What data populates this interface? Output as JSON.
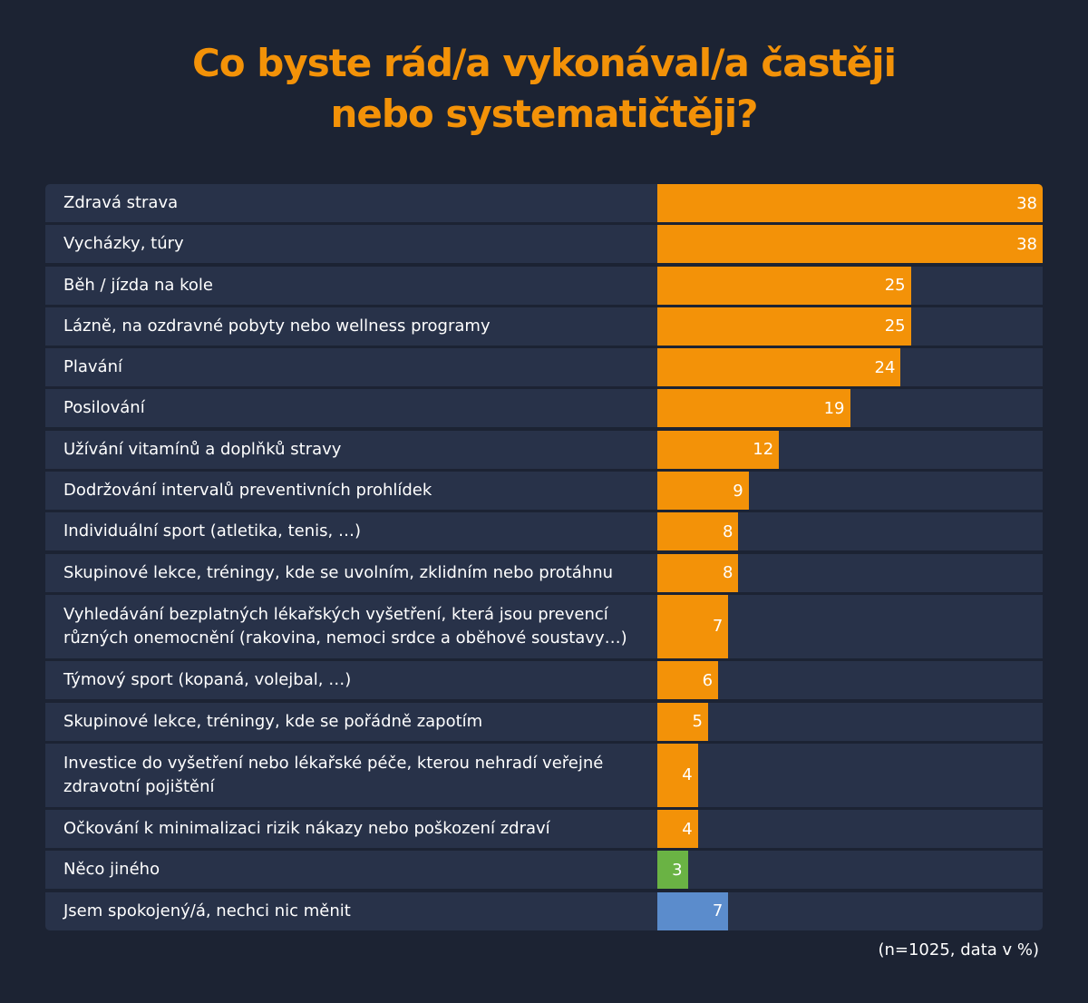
{
  "chart_data": {
    "type": "bar",
    "orientation": "horizontal",
    "title": "Co byste rád/a vykonával/a častěji nebo systematičtěji?",
    "title_lines": [
      "Co byste rád/a vykonával/a častěji",
      "nebo systematičtěji?"
    ],
    "note": "(n=1025, data v %)",
    "xlim": [
      0,
      38
    ],
    "grid": false,
    "categories": [
      "Zdravá strava",
      "Vycházky, túry",
      "Běh / jízda na kole",
      "Lázně, na ozdravné pobyty nebo wellness programy",
      "Plavání",
      "Posilování",
      "Užívání vitamínů a doplňků stravy",
      "Dodržování intervalů preventivních prohlídek",
      "Individuální sport (atletika, tenis, …)",
      "Skupinové lekce, tréningy, kde se uvolním, zklidním nebo protáhnu",
      "Vyhledávání bezplatných lékařských vyšetření, která jsou prevencí různých onemocnění (rakovina, nemoci srdce a oběhové soustavy…)",
      "Týmový sport (kopaná, volejbal, …)",
      "Skupinové lekce, tréningy, kde se pořádně zapotím",
      "Investice do vyšetření nebo lékařské péče, kterou nehradí veřejné zdravotní pojištění",
      "Očkování k minimalizaci rizik nákazy nebo poškození zdraví",
      "Něco jiného",
      "Jsem spokojený/á, nechci nic měnit"
    ],
    "values": [
      38,
      38,
      25,
      25,
      24,
      19,
      12,
      9,
      8,
      8,
      7,
      6,
      5,
      4,
      4,
      3,
      7
    ],
    "colors": [
      "#f39208",
      "#f39208",
      "#f39208",
      "#f39208",
      "#f39208",
      "#f39208",
      "#f39208",
      "#f39208",
      "#f39208",
      "#f39208",
      "#f39208",
      "#f39208",
      "#f39208",
      "#f39208",
      "#f39208",
      "#6ab344",
      "#5b8ccc"
    ]
  }
}
